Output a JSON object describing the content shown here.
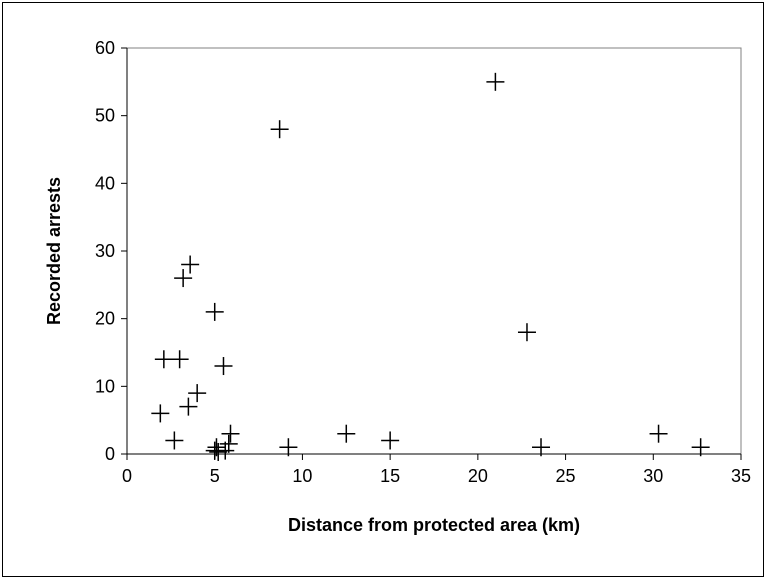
{
  "chart_data": {
    "type": "scatter",
    "title": "",
    "xlabel": "Distance from protected area (km)",
    "ylabel": "Recorded arrests",
    "xlim": [
      0,
      35
    ],
    "ylim": [
      0,
      60
    ],
    "x_ticks": [
      0,
      5,
      10,
      15,
      20,
      25,
      30,
      35
    ],
    "y_ticks": [
      0,
      10,
      20,
      30,
      40,
      50,
      60
    ],
    "grid": false,
    "legend": "none",
    "marker": "plus",
    "marker_color": "#000000",
    "series": [
      {
        "points": [
          {
            "x": 1.9,
            "y": 6
          },
          {
            "x": 2.1,
            "y": 14
          },
          {
            "x": 2.7,
            "y": 2
          },
          {
            "x": 3.0,
            "y": 14
          },
          {
            "x": 3.2,
            "y": 26
          },
          {
            "x": 3.5,
            "y": 7
          },
          {
            "x": 3.6,
            "y": 28
          },
          {
            "x": 4.0,
            "y": 9
          },
          {
            "x": 5.0,
            "y": 21
          },
          {
            "x": 5.0,
            "y": 0.5
          },
          {
            "x": 5.1,
            "y": 1
          },
          {
            "x": 5.2,
            "y": 0.3
          },
          {
            "x": 5.5,
            "y": 13
          },
          {
            "x": 5.6,
            "y": 0.5
          },
          {
            "x": 5.8,
            "y": 1.5
          },
          {
            "x": 5.9,
            "y": 3
          },
          {
            "x": 8.7,
            "y": 48
          },
          {
            "x": 9.2,
            "y": 1
          },
          {
            "x": 12.5,
            "y": 3
          },
          {
            "x": 15.0,
            "y": 2
          },
          {
            "x": 21.0,
            "y": 55
          },
          {
            "x": 22.8,
            "y": 18
          },
          {
            "x": 23.6,
            "y": 1
          },
          {
            "x": 30.3,
            "y": 3
          },
          {
            "x": 32.7,
            "y": 1
          }
        ]
      }
    ]
  }
}
